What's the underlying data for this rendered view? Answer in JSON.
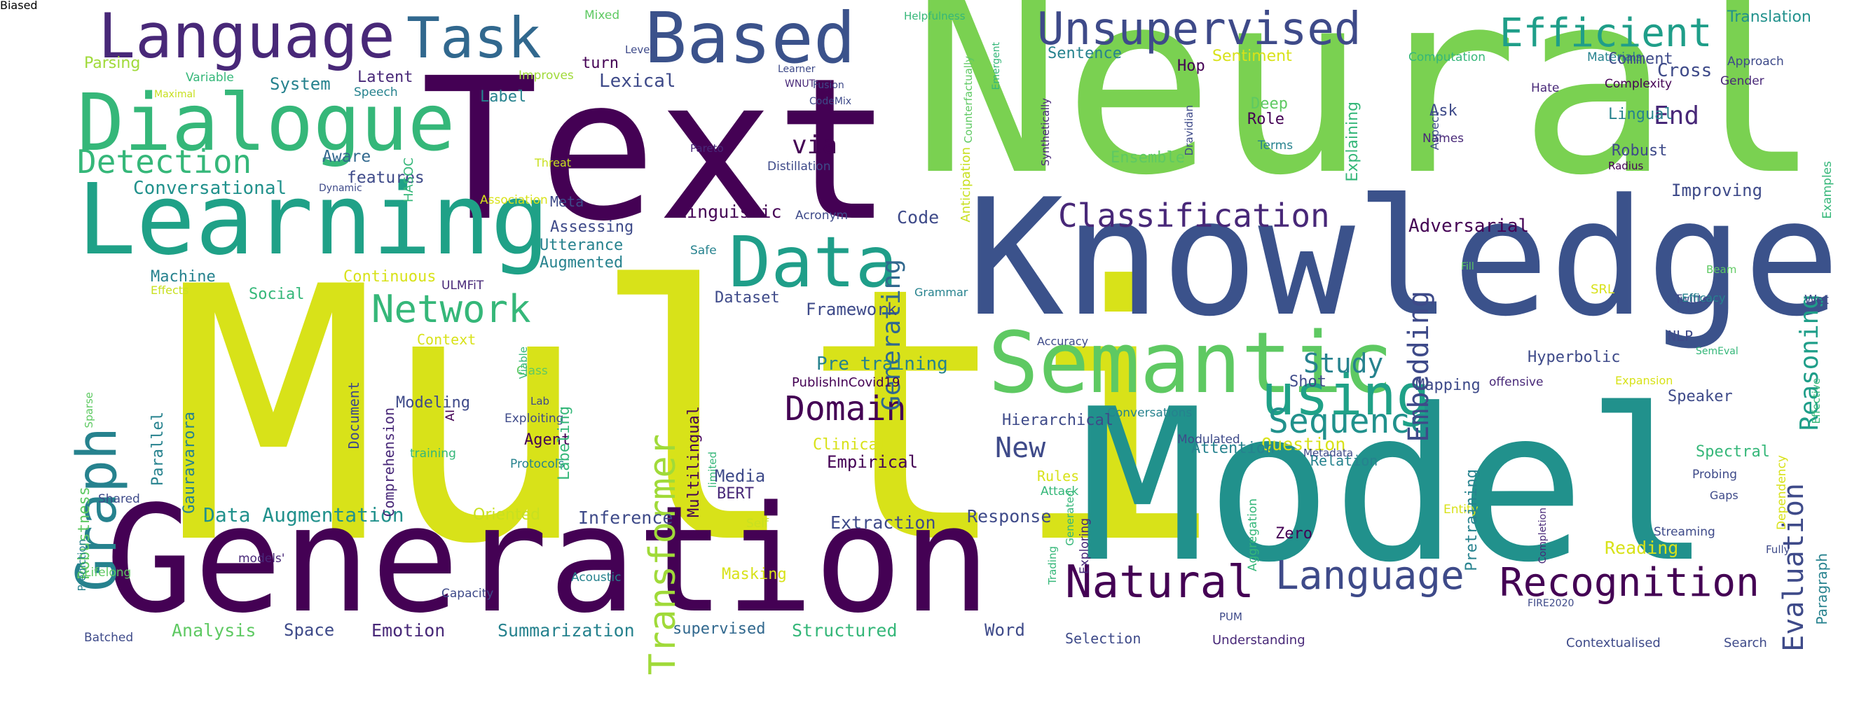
{
  "colors": {
    "background": "#ffffff",
    "purple": "#440154",
    "indigo": "#3b528b",
    "teal": "#21918c",
    "green": "#5ec962",
    "yellow": "#d8e219"
  },
  "words": [
    {
      "text": "Multi",
      "color": "#d8e219"
    },
    {
      "text": "Neural",
      "color": "#7ad151"
    },
    {
      "text": "Knowledge",
      "color": "#3b528b"
    },
    {
      "text": "Model",
      "color": "#21918c"
    },
    {
      "text": "Text",
      "color": "#440154"
    },
    {
      "text": "Generation",
      "color": "#440154"
    },
    {
      "text": "Learning",
      "color": "#1fa187"
    },
    {
      "text": "Dialogue",
      "color": "#35b779"
    },
    {
      "text": "Semantic",
      "color": "#5ec962"
    },
    {
      "text": "Data",
      "color": "#1f9e89"
    },
    {
      "text": "Based",
      "color": "#3b528b"
    },
    {
      "text": "Language",
      "color": "#482878"
    },
    {
      "text": "Task",
      "color": "#31688e"
    },
    {
      "text": "using",
      "color": "#1fa187"
    },
    {
      "text": "Graph",
      "color": "#26828e"
    },
    {
      "text": "Unsupervised",
      "color": "#3e4a89"
    },
    {
      "text": "Efficient",
      "color": "#1f9e89"
    },
    {
      "text": "Detection",
      "color": "#35b779"
    },
    {
      "text": "Classification",
      "color": "#482878"
    },
    {
      "text": "Natural",
      "color": "#440154"
    },
    {
      "text": "Language",
      "color": "#3e4a89"
    },
    {
      "text": "Recognition",
      "color": "#440154"
    },
    {
      "text": "Transformer",
      "color": "#a0da39"
    },
    {
      "text": "Network",
      "color": "#35b779"
    },
    {
      "text": "Sequence",
      "color": "#21918c"
    },
    {
      "text": "Domain",
      "color": "#440154"
    },
    {
      "text": "Embedding",
      "color": "#3e4a89"
    },
    {
      "text": "Evaluation",
      "color": "#3e4a89"
    },
    {
      "text": "Reasoning",
      "color": "#1f9e89"
    },
    {
      "text": "Generating",
      "color": "#31688e"
    },
    {
      "text": "Study",
      "color": "#26828e"
    },
    {
      "text": "New",
      "color": "#3e4a89"
    },
    {
      "text": "End",
      "color": "#482878"
    },
    {
      "text": "via",
      "color": "#440154"
    },
    {
      "text": "Data Augmentation",
      "color": "#21918c"
    },
    {
      "text": "Conversational",
      "color": "#21918c"
    },
    {
      "text": "Cross",
      "color": "#3e4a89"
    },
    {
      "text": "Translation",
      "color": "#21918c"
    },
    {
      "text": "Summarization",
      "color": "#26828e"
    },
    {
      "text": "Structured",
      "color": "#35b779"
    },
    {
      "text": "Emotion",
      "color": "#482878"
    },
    {
      "text": "Analysis",
      "color": "#5ec962"
    },
    {
      "text": "Space",
      "color": "#3e4a89"
    },
    {
      "text": "supervised",
      "color": "#31688e"
    },
    {
      "text": "Word",
      "color": "#3e4a89"
    },
    {
      "text": "Selection",
      "color": "#3e4a89"
    },
    {
      "text": "Understanding",
      "color": "#482878"
    },
    {
      "text": "Contextualised",
      "color": "#3e4a89"
    },
    {
      "text": "Search",
      "color": "#3e4a89"
    },
    {
      "text": "Batched",
      "color": "#3e4a89"
    },
    {
      "text": "Parsing",
      "color": "#a0da39"
    },
    {
      "text": "Variable",
      "color": "#35b779"
    },
    {
      "text": "Maximal",
      "color": "#c8e020"
    },
    {
      "text": "Speech",
      "color": "#26828e"
    },
    {
      "text": "Improves",
      "color": "#a0da39"
    },
    {
      "text": "System",
      "color": "#26828e"
    },
    {
      "text": "Latent",
      "color": "#482878"
    },
    {
      "text": "Label",
      "color": "#26828e"
    },
    {
      "text": "Aware",
      "color": "#31688e"
    },
    {
      "text": "features",
      "color": "#3e4a89"
    },
    {
      "text": "Dynamic",
      "color": "#3e4a89"
    },
    {
      "text": "HASOC",
      "color": "#35b779"
    },
    {
      "text": "Association",
      "color": "#d8e219"
    },
    {
      "text": "Threat",
      "color": "#c8e020"
    },
    {
      "text": "Meta",
      "color": "#3e4a89"
    },
    {
      "text": "Assessing",
      "color": "#3e4a89"
    },
    {
      "text": "Utterance",
      "color": "#26828e"
    },
    {
      "text": "Augmented",
      "color": "#26828e"
    },
    {
      "text": "Linguistic",
      "color": "#440154"
    },
    {
      "text": "Code",
      "color": "#3e4a89"
    },
    {
      "text": "Lexical",
      "color": "#3e4a89"
    },
    {
      "text": "turn",
      "color": "#440154"
    },
    {
      "text": "Level",
      "color": "#3e4a89"
    },
    {
      "text": "Mixed",
      "color": "#5ec962"
    },
    {
      "text": "Learner",
      "color": "#3e4a89"
    },
    {
      "text": "WNUT",
      "color": "#482878"
    },
    {
      "text": "CodeMix",
      "color": "#3e4a89"
    },
    {
      "text": "Fusion",
      "color": "#3e4a89"
    },
    {
      "text": "Pareto",
      "color": "#482878"
    },
    {
      "text": "Distillation",
      "color": "#3e4a89"
    },
    {
      "text": "Acronym",
      "color": "#3e4a89"
    },
    {
      "text": "Safe",
      "color": "#26828e"
    },
    {
      "text": "Grammar",
      "color": "#26828e"
    },
    {
      "text": "Helpfulness",
      "color": "#35b779"
    },
    {
      "text": "Counterfactually",
      "color": "#5ec962"
    },
    {
      "text": "Emergent",
      "color": "#35b779"
    },
    {
      "text": "Anticipation",
      "color": "#c8e020"
    },
    {
      "text": "Synthetically",
      "color": "#482878"
    },
    {
      "text": "Dravidian",
      "color": "#3e4a89"
    },
    {
      "text": "Sentence",
      "color": "#26828e"
    },
    {
      "text": "Hop",
      "color": "#440154"
    },
    {
      "text": "Sentiment",
      "color": "#d8e219"
    },
    {
      "text": "Role",
      "color": "#440154"
    },
    {
      "text": "Deep",
      "color": "#5ec962"
    },
    {
      "text": "Terms",
      "color": "#26828e"
    },
    {
      "text": "Explaining",
      "color": "#35b779"
    },
    {
      "text": "Ensemble",
      "color": "#5ec962"
    },
    {
      "text": "Computation",
      "color": "#35b779"
    },
    {
      "text": "Materials",
      "color": "#26828e"
    },
    {
      "text": "Comment",
      "color": "#3e4a89"
    },
    {
      "text": "Approach",
      "color": "#3e4a89"
    },
    {
      "text": "Gender",
      "color": "#482878"
    },
    {
      "text": "Complexity",
      "color": "#440154"
    },
    {
      "text": "Hate",
      "color": "#482878"
    },
    {
      "text": "Lingual",
      "color": "#26828e"
    },
    {
      "text": "Robust",
      "color": "#3e4a89"
    },
    {
      "text": "Radius",
      "color": "#440154"
    },
    {
      "text": "Examples",
      "color": "#35b779"
    },
    {
      "text": "Ask",
      "color": "#3e4a89"
    },
    {
      "text": "Names",
      "color": "#482878"
    },
    {
      "text": "Aspect",
      "color": "#3e4a89"
    },
    {
      "text": "Adversarial",
      "color": "#440154"
    },
    {
      "text": "Improving",
      "color": "#3e4a89"
    },
    {
      "text": "Twitter",
      "color": "#3e4a89"
    },
    {
      "text": "Beam",
      "color": "#5ec962"
    },
    {
      "text": "Fill",
      "color": "#5ec962"
    },
    {
      "text": "SRL",
      "color": "#d8e219"
    },
    {
      "text": "Efficacy",
      "color": "#26828e"
    },
    {
      "text": "Wet",
      "color": "#3e4a89"
    },
    {
      "text": "NLP",
      "color": "#3e4a89"
    },
    {
      "text": "SemEval",
      "color": "#35b779"
    },
    {
      "text": "Effective",
      "color": "#35b779"
    },
    {
      "text": "Hyperbolic",
      "color": "#3e4a89"
    },
    {
      "text": "offensive",
      "color": "#482878"
    },
    {
      "text": "Expansion",
      "color": "#d8e219"
    },
    {
      "text": "Mapping",
      "color": "#3e4a89"
    },
    {
      "text": "Speaker",
      "color": "#3e4a89"
    },
    {
      "text": "Question",
      "color": "#d8e219"
    },
    {
      "text": "Spectral",
      "color": "#35b779"
    },
    {
      "text": "Dependency",
      "color": "#d8e219"
    },
    {
      "text": "Probing",
      "color": "#3e4a89"
    },
    {
      "text": "Gaps",
      "color": "#3e4a89"
    },
    {
      "text": "Paragraph",
      "color": "#26828e"
    },
    {
      "text": "Reading",
      "color": "#d8e219"
    },
    {
      "text": "Fully",
      "color": "#3e4a89"
    },
    {
      "text": "Streaming",
      "color": "#3e4a89"
    },
    {
      "text": "Completion",
      "color": "#482878"
    },
    {
      "text": "FIRE2020",
      "color": "#3e4a89"
    },
    {
      "text": "Entity",
      "color": "#d8e219"
    },
    {
      "text": "Pretraining",
      "color": "#26828e"
    },
    {
      "text": "Zero",
      "color": "#440154"
    },
    {
      "text": "Relation",
      "color": "#26828e"
    },
    {
      "text": "Attention",
      "color": "#26828e"
    },
    {
      "text": "Shot",
      "color": "#3e4a89"
    },
    {
      "text": "Aggregation",
      "color": "#35b779"
    },
    {
      "text": "PUM",
      "color": "#3e4a89"
    },
    {
      "text": "Trading",
      "color": "#35b779"
    },
    {
      "text": "Exploring",
      "color": "#482878"
    },
    {
      "text": "Conversations",
      "color": "#26828e"
    },
    {
      "text": "Modulated",
      "color": "#3e4a89"
    },
    {
      "text": "Metadata",
      "color": "#3e4a89"
    },
    {
      "text": "Generated",
      "color": "#35b779"
    },
    {
      "text": "Accuracy",
      "color": "#3e4a89"
    },
    {
      "text": "Hierarchical",
      "color": "#3e4a89"
    },
    {
      "text": "PublishInCovid19",
      "color": "#440154"
    },
    {
      "text": "Pre training",
      "color": "#26828e"
    },
    {
      "text": "Framework",
      "color": "#3e4a89"
    },
    {
      "text": "Dataset",
      "color": "#3e4a89"
    },
    {
      "text": "Multilingual",
      "color": "#440154"
    },
    {
      "text": "limited",
      "color": "#35b779"
    },
    {
      "text": "Clinical",
      "color": "#d8e219"
    },
    {
      "text": "Empirical",
      "color": "#440154"
    },
    {
      "text": "Media",
      "color": "#3e4a89"
    },
    {
      "text": "BERT",
      "color": "#482878"
    },
    {
      "text": "Rules",
      "color": "#d8e219"
    },
    {
      "text": "Attack",
      "color": "#35b779"
    },
    {
      "text": "Response",
      "color": "#3e4a89"
    },
    {
      "text": "Extraction",
      "color": "#3e4a89"
    },
    {
      "text": "Inference",
      "color": "#3e4a89"
    },
    {
      "text": "Self",
      "color": "#c8e020"
    },
    {
      "text": "Masking",
      "color": "#d8e219"
    },
    {
      "text": "Acoustic",
      "color": "#26828e"
    },
    {
      "text": "Capacity",
      "color": "#3e4a89"
    },
    {
      "text": "models'",
      "color": "#482878"
    },
    {
      "text": "Oriented",
      "color": "#c8e020"
    },
    {
      "text": "Agent",
      "color": "#440154"
    },
    {
      "text": "Protocols",
      "color": "#26828e"
    },
    {
      "text": "Exploiting",
      "color": "#3e4a89"
    },
    {
      "text": "Labeling",
      "color": "#35b779"
    },
    {
      "text": "Lab",
      "color": "#3e4a89"
    },
    {
      "text": "Class",
      "color": "#5ec962"
    },
    {
      "text": "Viable",
      "color": "#35b779"
    },
    {
      "text": "Context",
      "color": "#d8e219"
    },
    {
      "text": "Continuous",
      "color": "#d8e219"
    },
    {
      "text": "ULMFiT",
      "color": "#482878"
    },
    {
      "text": "Social",
      "color": "#35b779"
    },
    {
      "text": "Machine",
      "color": "#26828e"
    },
    {
      "text": "Effects",
      "color": "#c8e020"
    },
    {
      "text": "Gauravarora",
      "color": "#26828e"
    },
    {
      "text": "Parallel",
      "color": "#26828e"
    },
    {
      "text": "Document",
      "color": "#3e4a89"
    },
    {
      "text": "Comprehension",
      "color": "#482878"
    },
    {
      "text": "Modeling",
      "color": "#3e4a89"
    },
    {
      "text": "AI",
      "color": "#440154"
    },
    {
      "text": "training",
      "color": "#35b779"
    },
    {
      "text": "Sparse",
      "color": "#5ec962"
    },
    {
      "text": "Shared",
      "color": "#3e4a89"
    },
    {
      "text": "Robustness",
      "color": "#5ec962"
    },
    {
      "text": "Prediction",
      "color": "#26828e"
    },
    {
      "text": "Lifelong",
      "color": "#5ec962"
    },
    {
      "text": "Biased",
      "color": "#482878"
    }
  ]
}
